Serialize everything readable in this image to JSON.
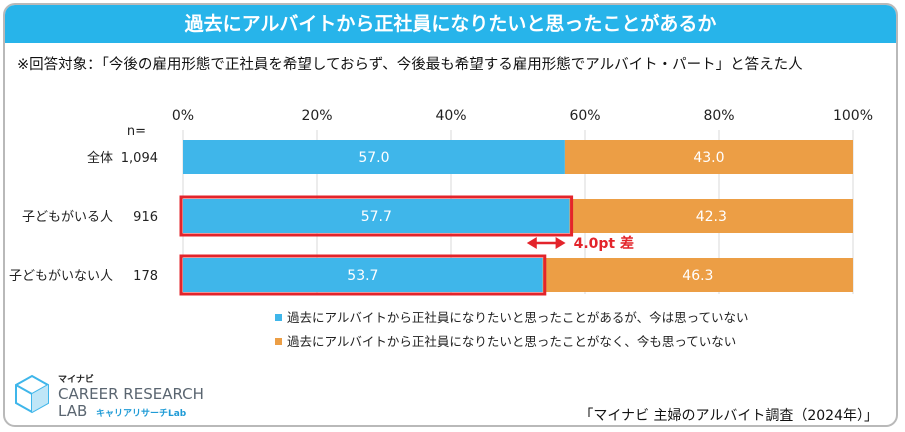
{
  "title": "過去にアルバイトから正社員になりたいと思ったことがあるか",
  "subtitle": "※回答対象：「今後の雇用形態で正社員を希望しておらず、今後最も希望する雇用形態でアルバイト・パート」と答えた人",
  "n_label": "n=",
  "source": "「マイナビ 主婦のアルバイト調査（2024年）」",
  "logo": {
    "top_text": "マイナビ",
    "line1": "CAREER RESEARCH",
    "line2": "LAB",
    "sub": "キャリアリサーチLab"
  },
  "colors": {
    "title_bg": "#27b4ea",
    "series1": "#3fb6ea",
    "series2": "#ec9e45",
    "highlight": "#e3242b"
  },
  "chart_data": {
    "type": "bar",
    "orientation": "horizontal-stacked-100",
    "xlim": [
      0,
      100
    ],
    "x_ticks": [
      "0%",
      "20%",
      "40%",
      "60%",
      "80%",
      "100%"
    ],
    "categories": [
      "全体",
      "子どもがいる人",
      "子どもがいない人"
    ],
    "n": [
      "1,094",
      "916",
      "178"
    ],
    "series": [
      {
        "name": "過去にアルバイトから正社員になりたいと思ったことがあるが、今は思っていない",
        "values": [
          57.0,
          57.7,
          53.7
        ],
        "labels": [
          "57.0",
          "57.7",
          "53.7"
        ]
      },
      {
        "name": "過去にアルバイトから正社員になりたいと思ったことがなく、今も思っていない",
        "values": [
          43.0,
          42.3,
          46.3
        ],
        "labels": [
          "43.0",
          "42.3",
          "46.3"
        ]
      }
    ],
    "highlighted_rows": [
      1,
      2
    ],
    "annotation": {
      "text": "4.0pt 差",
      "from_value": 53.7,
      "to_value": 57.7
    }
  }
}
